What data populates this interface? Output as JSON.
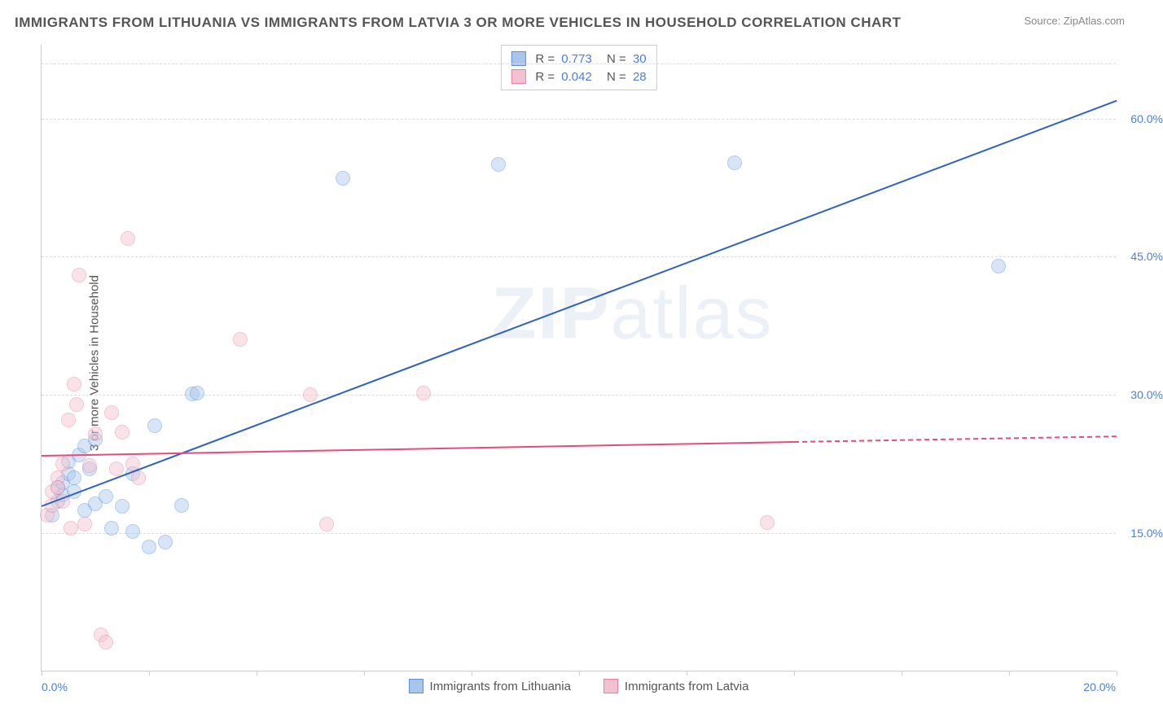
{
  "title": "IMMIGRANTS FROM LITHUANIA VS IMMIGRANTS FROM LATVIA 3 OR MORE VEHICLES IN HOUSEHOLD CORRELATION CHART",
  "source": "Source: ZipAtlas.com",
  "ylabel": "3 or more Vehicles in Household",
  "watermark_part1": "ZIP",
  "watermark_part2": "atlas",
  "chart": {
    "type": "scatter",
    "xlim": [
      0,
      20
    ],
    "ylim": [
      0,
      68
    ],
    "background_color": "#ffffff",
    "grid_color": "#dddddd",
    "axis_color": "#cccccc",
    "tick_color": "#4a80d6",
    "xticks": [
      0,
      2,
      4,
      6,
      8,
      10,
      12,
      14,
      16,
      18,
      20
    ],
    "xtick_labels": {
      "left": "0.0%",
      "right": "20.0%"
    },
    "yticks": [
      {
        "value": 15,
        "label": "15.0%"
      },
      {
        "value": 30,
        "label": "30.0%"
      },
      {
        "value": 45,
        "label": "45.0%"
      },
      {
        "value": 60,
        "label": "60.0%"
      }
    ],
    "ygrid_extra": [
      66
    ],
    "point_radius": 9,
    "point_opacity": 0.45,
    "series": [
      {
        "name": "Immigrants from Lithuania",
        "fill_color": "#a8c6ec",
        "stroke_color": "#5b8fd6",
        "line_color": "#2e63c0",
        "r_value": "0.773",
        "n_value": "30",
        "points": [
          [
            0.2,
            17.0
          ],
          [
            0.3,
            18.5
          ],
          [
            0.4,
            19.2
          ],
          [
            0.4,
            20.5
          ],
          [
            0.5,
            21.5
          ],
          [
            0.5,
            22.8
          ],
          [
            0.6,
            21.0
          ],
          [
            0.7,
            23.5
          ],
          [
            0.8,
            24.5
          ],
          [
            0.8,
            17.5
          ],
          [
            1.0,
            18.2
          ],
          [
            1.0,
            25.2
          ],
          [
            1.2,
            19.0
          ],
          [
            1.3,
            15.5
          ],
          [
            1.5,
            17.9
          ],
          [
            1.7,
            21.5
          ],
          [
            1.7,
            15.2
          ],
          [
            2.0,
            13.5
          ],
          [
            2.1,
            26.7
          ],
          [
            2.3,
            14.0
          ],
          [
            2.8,
            30.1
          ],
          [
            2.9,
            30.2
          ],
          [
            2.6,
            18.0
          ],
          [
            5.6,
            53.5
          ],
          [
            8.5,
            55.0
          ],
          [
            12.9,
            55.2
          ],
          [
            17.8,
            44.0
          ],
          [
            0.3,
            20.0
          ],
          [
            0.6,
            19.5
          ],
          [
            0.9,
            22.0
          ]
        ],
        "trend_line": {
          "x1": 0,
          "y1": 18.0,
          "x2": 20,
          "y2": 62.0
        }
      },
      {
        "name": "Immigrants from Latvia",
        "fill_color": "#f3c2d0",
        "stroke_color": "#e680a0",
        "line_color": "#e64c7a",
        "r_value": "0.042",
        "n_value": "28",
        "points": [
          [
            0.1,
            17.0
          ],
          [
            0.2,
            18.0
          ],
          [
            0.2,
            19.5
          ],
          [
            0.3,
            21.0
          ],
          [
            0.3,
            20.0
          ],
          [
            0.4,
            22.5
          ],
          [
            0.5,
            27.3
          ],
          [
            0.55,
            15.5
          ],
          [
            0.6,
            31.2
          ],
          [
            0.65,
            29.0
          ],
          [
            0.7,
            43.0
          ],
          [
            0.8,
            16.0
          ],
          [
            0.9,
            22.3
          ],
          [
            1.0,
            25.8
          ],
          [
            1.1,
            4.0
          ],
          [
            1.2,
            3.2
          ],
          [
            1.3,
            28.1
          ],
          [
            1.4,
            22.0
          ],
          [
            1.5,
            26.0
          ],
          [
            1.6,
            47.0
          ],
          [
            1.7,
            22.5
          ],
          [
            1.8,
            21.0
          ],
          [
            3.7,
            36.0
          ],
          [
            5.0,
            30.0
          ],
          [
            5.3,
            16.0
          ],
          [
            7.1,
            30.2
          ],
          [
            13.5,
            16.2
          ],
          [
            0.4,
            18.5
          ]
        ],
        "trend_line_solid": {
          "x1": 0,
          "y1": 23.5,
          "x2": 14.0,
          "y2": 25.0
        },
        "trend_line_dashed": {
          "x1": 14.0,
          "y1": 25.0,
          "x2": 20,
          "y2": 25.6
        }
      }
    ]
  },
  "legend_top": {
    "r_label": "R  =",
    "n_label": "N  ="
  },
  "legend_bottom": [
    {
      "label": "Immigrants from Lithuania",
      "fill": "#a8c6ec",
      "stroke": "#5b8fd6"
    },
    {
      "label": "Immigrants from Latvia",
      "fill": "#f3c2d0",
      "stroke": "#e680a0"
    }
  ]
}
